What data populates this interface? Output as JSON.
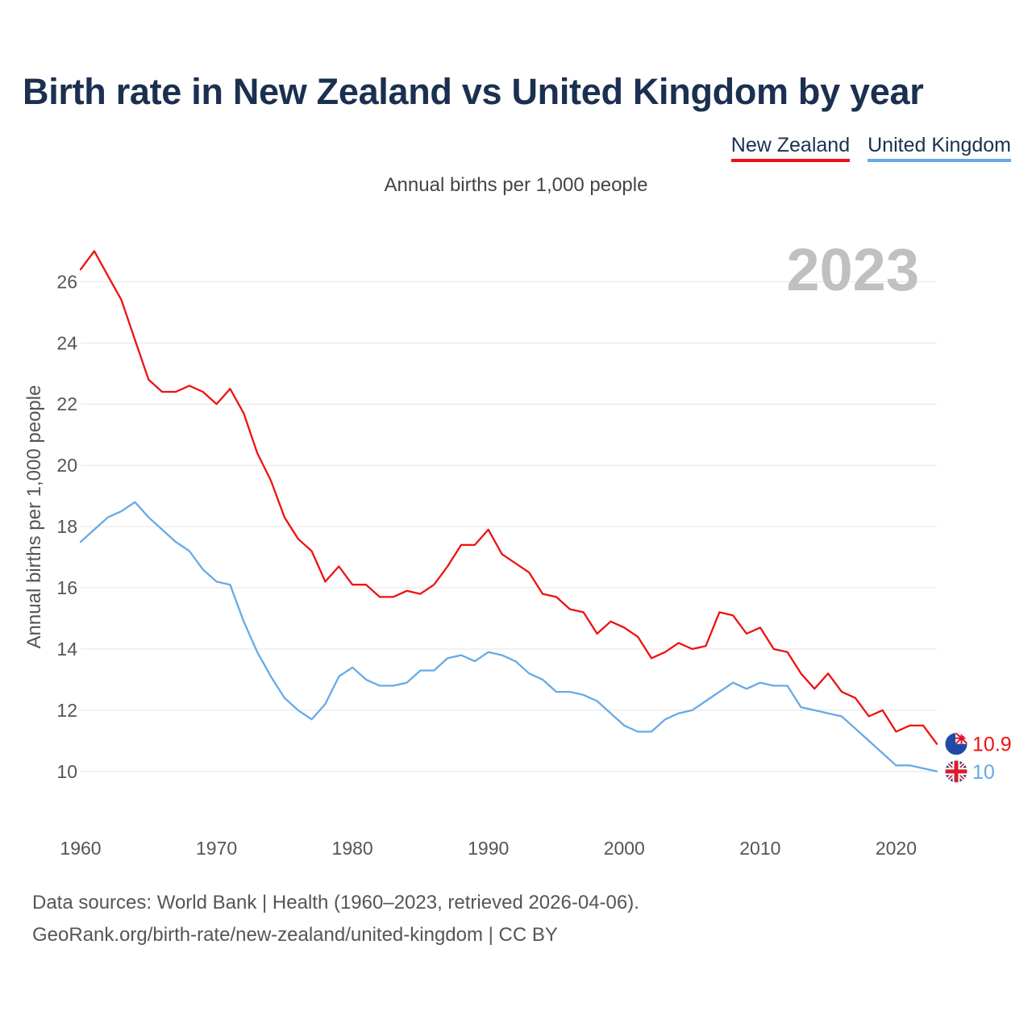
{
  "title": "Birth rate in New Zealand vs United Kingdom by year",
  "legend": {
    "nz": "New Zealand",
    "uk": "United Kingdom"
  },
  "subtitle": "Annual births per 1,000 people",
  "footer": {
    "line1": "Data sources: World Bank | Health (1960–2023, retrieved 2026-04-06).",
    "line2": "GeoRank.org/birth-rate/new-zealand/united-kingdom | CC BY"
  },
  "chart_data": {
    "type": "line",
    "title": "Birth rate in New Zealand vs United Kingdom by year",
    "ylabel": "Annual births per 1,000 people",
    "xlabel": "",
    "year_label": "2023",
    "xlim": [
      1960,
      2023
    ],
    "ylim": [
      8.6,
      27.3
    ],
    "x_ticks": [
      1960,
      1970,
      1980,
      1990,
      2000,
      2010,
      2020
    ],
    "y_ticks": [
      10,
      12,
      14,
      16,
      18,
      20,
      22,
      24,
      26
    ],
    "grid": true,
    "legend_position": "top-right",
    "x": [
      1960,
      1961,
      1962,
      1963,
      1964,
      1965,
      1966,
      1967,
      1968,
      1969,
      1970,
      1971,
      1972,
      1973,
      1974,
      1975,
      1976,
      1977,
      1978,
      1979,
      1980,
      1981,
      1982,
      1983,
      1984,
      1985,
      1986,
      1987,
      1988,
      1989,
      1990,
      1991,
      1992,
      1993,
      1994,
      1995,
      1996,
      1997,
      1998,
      1999,
      2000,
      2001,
      2002,
      2003,
      2004,
      2005,
      2006,
      2007,
      2008,
      2009,
      2010,
      2011,
      2012,
      2013,
      2014,
      2015,
      2016,
      2017,
      2018,
      2019,
      2020,
      2021,
      2022,
      2023
    ],
    "series": [
      {
        "name": "New Zealand",
        "color": "#ee1111",
        "end_label": "10.9",
        "values": [
          26.4,
          27.0,
          26.2,
          25.4,
          24.1,
          22.8,
          22.4,
          22.4,
          22.6,
          22.4,
          22.0,
          22.5,
          21.7,
          20.4,
          19.5,
          18.3,
          17.6,
          17.2,
          16.2,
          16.7,
          16.1,
          16.1,
          15.7,
          15.7,
          15.9,
          15.8,
          16.1,
          16.7,
          17.4,
          17.4,
          17.9,
          17.1,
          16.8,
          16.5,
          15.8,
          15.7,
          15.3,
          15.2,
          14.5,
          14.9,
          14.7,
          14.4,
          13.7,
          13.9,
          14.2,
          14.0,
          14.1,
          15.2,
          15.1,
          14.5,
          14.7,
          14.0,
          13.9,
          13.2,
          12.7,
          13.2,
          12.6,
          12.4,
          11.8,
          12.0,
          11.3,
          11.5,
          11.5,
          10.9
        ]
      },
      {
        "name": "United Kingdom",
        "color": "#66aae6",
        "end_label": "10",
        "values": [
          17.5,
          17.9,
          18.3,
          18.5,
          18.8,
          18.3,
          17.9,
          17.5,
          17.2,
          16.6,
          16.2,
          16.1,
          14.9,
          13.9,
          13.1,
          12.4,
          12.0,
          11.7,
          12.2,
          13.1,
          13.4,
          13.0,
          12.8,
          12.8,
          12.9,
          13.3,
          13.3,
          13.7,
          13.8,
          13.6,
          13.9,
          13.8,
          13.6,
          13.2,
          13.0,
          12.6,
          12.6,
          12.5,
          12.3,
          11.9,
          11.5,
          11.3,
          11.3,
          11.7,
          11.9,
          12.0,
          12.3,
          12.6,
          12.9,
          12.7,
          12.9,
          12.8,
          12.8,
          12.1,
          12.0,
          11.9,
          11.8,
          11.4,
          11.0,
          10.6,
          10.2,
          10.2,
          10.1,
          10.0
        ]
      }
    ]
  }
}
